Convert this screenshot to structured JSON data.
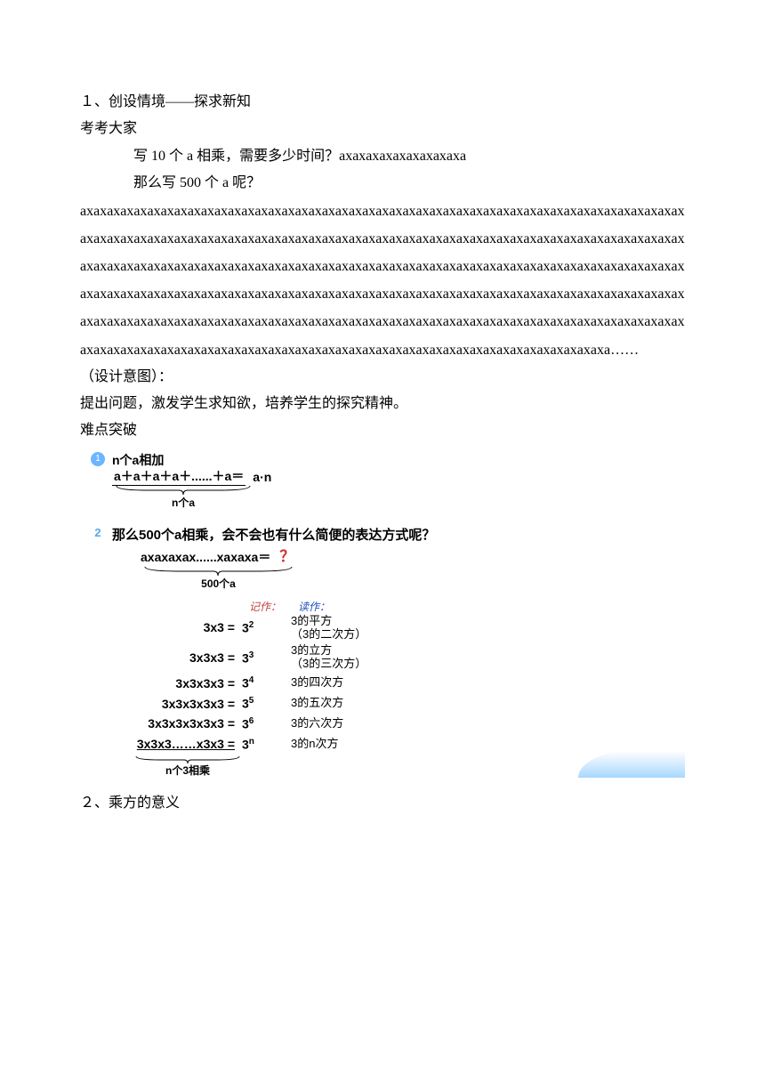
{
  "section1_title": "１、创设情境——探求新知",
  "quiz_header": "考考大家",
  "q1a": "写 10 个 a 相乘，需要多少时间？axaxaxaxaxaxaxaxaxa",
  "q1b": "那么写 500 个 a 呢？",
  "axa_text": "axaxaxaxaxaxaxaxaxaxaxaxaxaxaxaxaxaxaxaxaxaxaxaxaxaxaxaxaxaxaxaxaxaxaxaxaxaxaxaxaxaxaxaxaxaxaxaxaxaxaxaxaxaxaxaxaxaxaxaxaxaxaxaxaxaxaxaxaxaxaxaxaxaxaxaxaxaxaxaxaxaxaxaxaxaxaxaxaxaxaxaxaxaxaxaxaxaxaxaxaxaxaxaxaxaxaxaxaxaxaxaxaxaxaxaxaxaxaxaxaxaxaxaxaxaxaxaxaxaxaxaxaxaxaxaxaxaxaxaxaxaxaxaxaxaxaxaxaxaxaxaxaxaxaxaxaxaxaxaxaxaxaxaxaxaxaxaxaxaxaxaxaxaxaxaxaxaxaxaxaxaxaxaxaxaxaxaxaxaxaxaxaxaxaxaxaxaxaxaxaxaxaxaxaxaxaxaxaxaxaxaxaxaxaxaxaxaxaxaxaxaxaxaxaxaxaxaxaxaxaxaxaxaxaxaxaxaxaxaxaxaxaxaxaxaxaxaxaxaxaxaxaxaxaxaxaxaxaxaxaxaxaxaxa……",
  "design_label": "（设计意图）：",
  "design_text": "提出问题，激发学生求知欲，培养学生的探究精神。",
  "breakpoint_label": "难点突破",
  "n_add": {
    "title": "n个a相加",
    "sum": "a＋a＋a＋a＋......＋a＝",
    "result": "a·n",
    "brace_label": "n个a"
  },
  "q2": {
    "text": "那么500个a相乘，会不会也有什么简便的表达方式呢？",
    "prod": "axaxaxax......xaxaxa＝",
    "qmark": "？",
    "brace_label": "500个a"
  },
  "table": {
    "hdr_mid": "记作：",
    "hdr_right": "读作：",
    "rows": [
      {
        "left": "3x3 =",
        "base": "3",
        "exp": "2",
        "right_a": "3的平方",
        "right_b": "（3的二次方）"
      },
      {
        "left": "3x3x3 =",
        "base": "3",
        "exp": "3",
        "right_a": "3的立方",
        "right_b": "（3的三次方）"
      },
      {
        "left": "3x3x3x3 =",
        "base": "3",
        "exp": "4",
        "right_a": "3的四次方",
        "right_b": ""
      },
      {
        "left": "3x3x3x3x3 =",
        "base": "3",
        "exp": "5",
        "right_a": "3的五次方",
        "right_b": ""
      },
      {
        "left": "3x3x3x3x3x3 =",
        "base": "3",
        "exp": "6",
        "right_a": "3的六次方",
        "right_b": ""
      },
      {
        "left": "3x3x3……x3x3 =",
        "base": "3",
        "exp": "n",
        "right_a": "3的n次方",
        "right_b": ""
      }
    ],
    "bottom_brace": "n个3相乘"
  },
  "section2_title": "２、乘方的意义"
}
